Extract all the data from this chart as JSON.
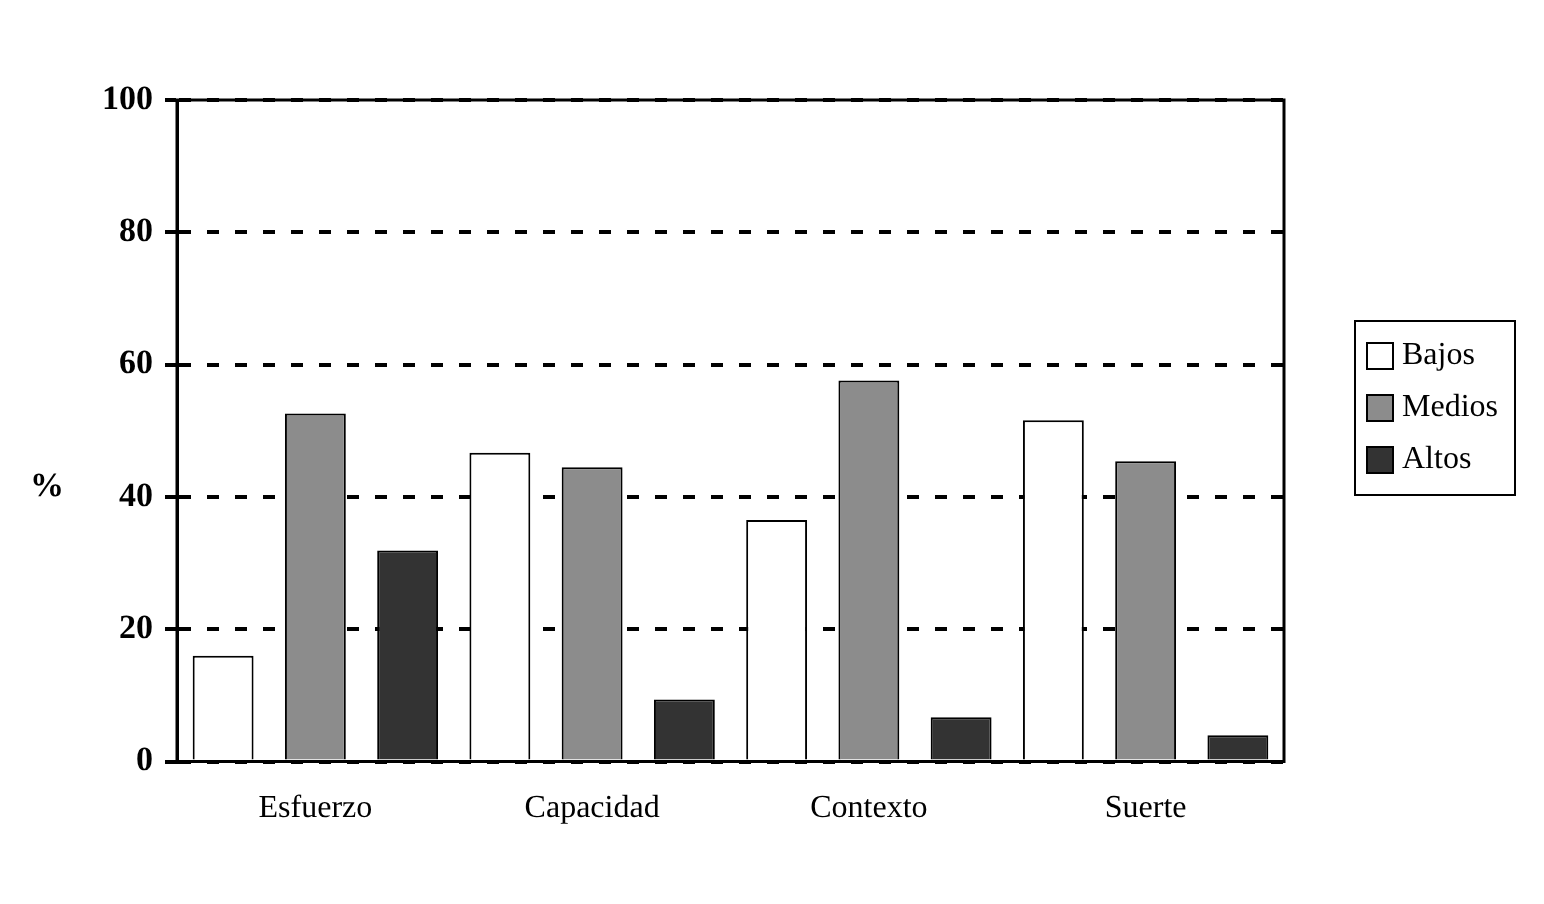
{
  "chart_data": {
    "type": "bar",
    "ylabel": "%",
    "categories": [
      "Esfuerzo",
      "Capacidad",
      "Contexto",
      "Suerte"
    ],
    "series": [
      {
        "name": "Bajos",
        "color": "#ffffff",
        "values": [
          16,
          46.7,
          36.5,
          51.6
        ]
      },
      {
        "name": "Medios",
        "color": "#8c8c8c",
        "values": [
          52.6,
          44.5,
          57.6,
          45.4
        ]
      },
      {
        "name": "Altos",
        "color": "#333333",
        "values": [
          31.9,
          9.4,
          6.7,
          4
        ]
      }
    ],
    "ylim": [
      0,
      100
    ],
    "yticks": [
      0,
      20,
      40,
      60,
      80,
      100
    ],
    "grid": "y",
    "legend": "right"
  }
}
